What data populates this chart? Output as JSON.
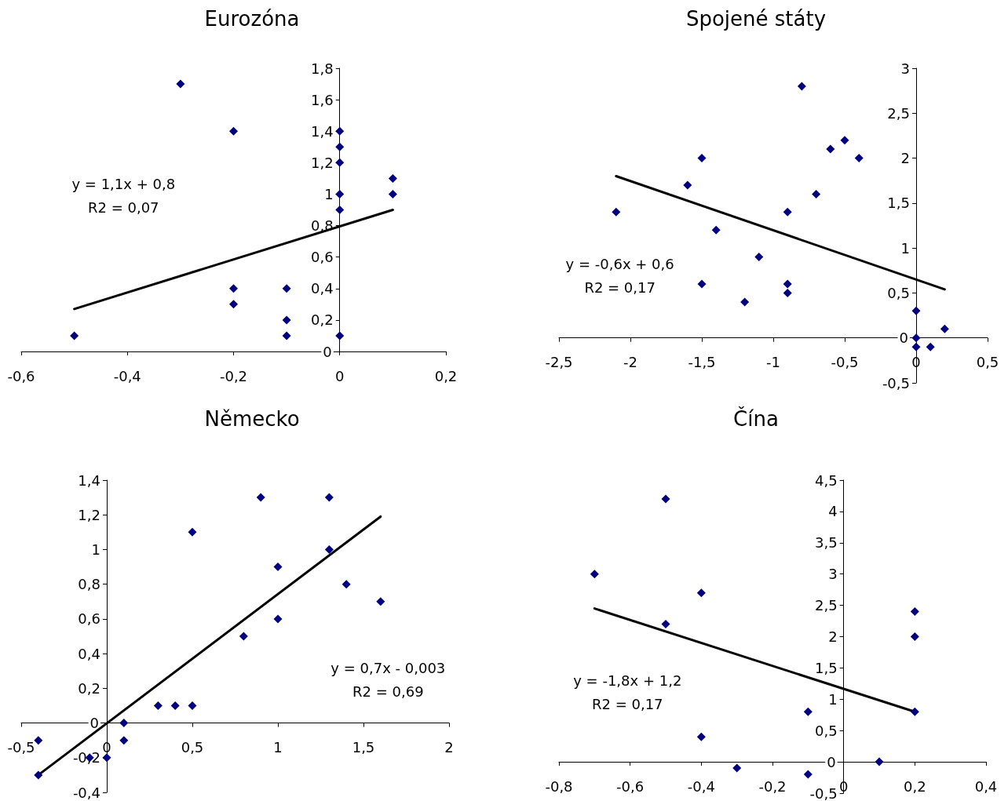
{
  "chart_data": [
    {
      "type": "scatter",
      "title": "Eurozóna",
      "marker": "diamond",
      "xlim": [
        -0.6,
        0.2
      ],
      "xticks": [
        {
          "value": -0.6,
          "label": "-0,6"
        },
        {
          "value": -0.4,
          "label": "-0,4"
        },
        {
          "value": -0.2,
          "label": "-0,2"
        },
        0,
        {
          "value": 0.2,
          "label": "0,2"
        }
      ],
      "ylim": [
        0,
        1.8
      ],
      "yticks": [
        0,
        {
          "value": 0.2,
          "label": "0,2"
        },
        {
          "value": 0.4,
          "label": "0,4"
        },
        {
          "value": 0.6,
          "label": "0,6"
        },
        {
          "value": 0.8,
          "label": "0,8"
        },
        1,
        {
          "value": 1.2,
          "label": "1,2"
        },
        {
          "value": 1.4,
          "label": "1,4"
        },
        {
          "value": 1.6,
          "label": "1,6"
        },
        {
          "value": 1.8,
          "label": "1,8"
        }
      ],
      "series": [
        {
          "type": "scatter",
          "color": "#000080",
          "x": [
            -0.5,
            -0.3,
            -0.2,
            -0.2,
            -0.2,
            -0.1,
            -0.1,
            -0.1,
            0,
            0,
            0,
            0,
            0,
            0,
            0.1,
            0.1
          ],
          "values": [
            0.1,
            1.7,
            1.4,
            0.4,
            0.3,
            0.4,
            0.2,
            0.1,
            1.4,
            1.3,
            1.2,
            1.0,
            0.9,
            0.1,
            1.1,
            1.0
          ]
        },
        {
          "type": "line",
          "color": "#000000",
          "marker": "none",
          "x": [
            -0.5,
            0.1
          ],
          "values": [
            0.27,
            0.9
          ]
        }
      ],
      "annotations": [
        "y = 1,1x + 0,8",
        "R2 = 0,07"
      ]
    },
    {
      "type": "scatter",
      "title": "Spojené státy",
      "marker": "diamond",
      "xlim": [
        -2.5,
        0.5
      ],
      "xticks": [
        {
          "value": -2.5,
          "label": "-2,5"
        },
        -2,
        {
          "value": -1.5,
          "label": "-1,5"
        },
        -1,
        {
          "value": -0.5,
          "label": "-0,5"
        },
        0,
        {
          "value": 0.5,
          "label": "0,5"
        }
      ],
      "ylim": [
        -0.5,
        3
      ],
      "yticks": [
        {
          "value": -0.5,
          "label": "-0,5"
        },
        0,
        {
          "value": 0.5,
          "label": "0,5"
        },
        1,
        {
          "value": 1.5,
          "label": "1,5"
        },
        2,
        {
          "value": 2.5,
          "label": "2,5"
        },
        3
      ],
      "series": [
        {
          "type": "scatter",
          "color": "#000080",
          "x": [
            -2.1,
            -1.6,
            -1.5,
            -1.4,
            -1.5,
            -1.2,
            -1.1,
            -0.9,
            -0.9,
            -0.9,
            -0.8,
            -0.7,
            -0.6,
            -0.5,
            -0.4,
            0,
            0,
            0,
            0.1,
            0.2
          ],
          "values": [
            1.4,
            1.7,
            2.0,
            1.2,
            0.6,
            0.4,
            0.9,
            1.4,
            0.6,
            0.5,
            2.8,
            1.6,
            2.1,
            2.2,
            2.0,
            0.3,
            0,
            -0.1,
            -0.1,
            0.1
          ]
        },
        {
          "type": "line",
          "color": "#000000",
          "marker": "none",
          "x": [
            -2.1,
            0.2
          ],
          "values": [
            1.8,
            0.54
          ]
        }
      ],
      "annotations": [
        "y = -0,6x + 0,6",
        "R2 = 0,17"
      ]
    },
    {
      "type": "scatter",
      "title": "Německo",
      "marker": "diamond",
      "xlim": [
        -0.5,
        2
      ],
      "xticks": [
        {
          "value": -0.5,
          "label": "-0,5"
        },
        0,
        {
          "value": 0.5,
          "label": "0,5"
        },
        1,
        {
          "value": 1.5,
          "label": "1,5"
        },
        2
      ],
      "ylim": [
        -0.4,
        1.4
      ],
      "yticks": [
        {
          "value": -0.4,
          "label": "-0,4"
        },
        {
          "value": -0.2,
          "label": "-0,2"
        },
        0,
        {
          "value": 0.2,
          "label": "0,2"
        },
        {
          "value": 0.4,
          "label": "0,4"
        },
        {
          "value": 0.6,
          "label": "0,6"
        },
        {
          "value": 0.8,
          "label": "0,8"
        },
        1,
        {
          "value": 1.2,
          "label": "1,2"
        },
        {
          "value": 1.4,
          "label": "1,4"
        }
      ],
      "series": [
        {
          "type": "scatter",
          "color": "#000080",
          "x": [
            -0.4,
            -0.4,
            -0.1,
            0,
            0.1,
            0.1,
            0.3,
            0.4,
            0.5,
            0.5,
            0.8,
            0.9,
            1,
            1,
            1.3,
            1.3,
            1.4,
            1.6
          ],
          "values": [
            -0.1,
            -0.3,
            -0.2,
            -0.2,
            0,
            -0.1,
            0.1,
            0.1,
            0.1,
            1.1,
            0.5,
            1.3,
            0.9,
            0.6,
            1.3,
            1.0,
            0.8,
            0.7
          ]
        },
        {
          "type": "line",
          "color": "#000000",
          "marker": "none",
          "x": [
            -0.4,
            1.6
          ],
          "values": [
            -0.3,
            1.19
          ]
        }
      ],
      "annotations": [
        "y = 0,7x - 0,003",
        "R2 = 0,69"
      ]
    },
    {
      "type": "scatter",
      "title": "Čína",
      "marker": "diamond",
      "xlim": [
        -0.8,
        0.4
      ],
      "xticks": [
        {
          "value": -0.8,
          "label": "-0,8"
        },
        {
          "value": -0.6,
          "label": "-0,6"
        },
        {
          "value": -0.4,
          "label": "-0,4"
        },
        {
          "value": -0.2,
          "label": "-0,2"
        },
        0,
        {
          "value": 0.2,
          "label": "0,2"
        },
        {
          "value": 0.4,
          "label": "0,4"
        }
      ],
      "ylim": [
        -0.5,
        4.5
      ],
      "yticks": [
        {
          "value": -0.5,
          "label": "-0,5"
        },
        0,
        {
          "value": 0.5,
          "label": "0,5"
        },
        1,
        {
          "value": 1.5,
          "label": "1,5"
        },
        2,
        {
          "value": 2.5,
          "label": "2,5"
        },
        3,
        {
          "value": 3.5,
          "label": "3,5"
        },
        4,
        {
          "value": 4.5,
          "label": "4,5"
        }
      ],
      "series": [
        {
          "type": "scatter",
          "color": "#000080",
          "x": [
            -0.7,
            -0.5,
            -0.5,
            -0.4,
            -0.4,
            -0.3,
            -0.1,
            -0.1,
            0.1,
            0.2,
            0.2,
            0.2
          ],
          "values": [
            3.0,
            4.2,
            2.2,
            2.7,
            0.4,
            -0.1,
            0.8,
            -0.2,
            0,
            2.4,
            2.0,
            0.8
          ]
        },
        {
          "type": "line",
          "color": "#000000",
          "marker": "none",
          "x": [
            -0.7,
            0.2
          ],
          "values": [
            2.45,
            0.8
          ]
        }
      ],
      "annotations": [
        "y = -1,8x + 1,2",
        "R2 = 0,17"
      ]
    }
  ]
}
